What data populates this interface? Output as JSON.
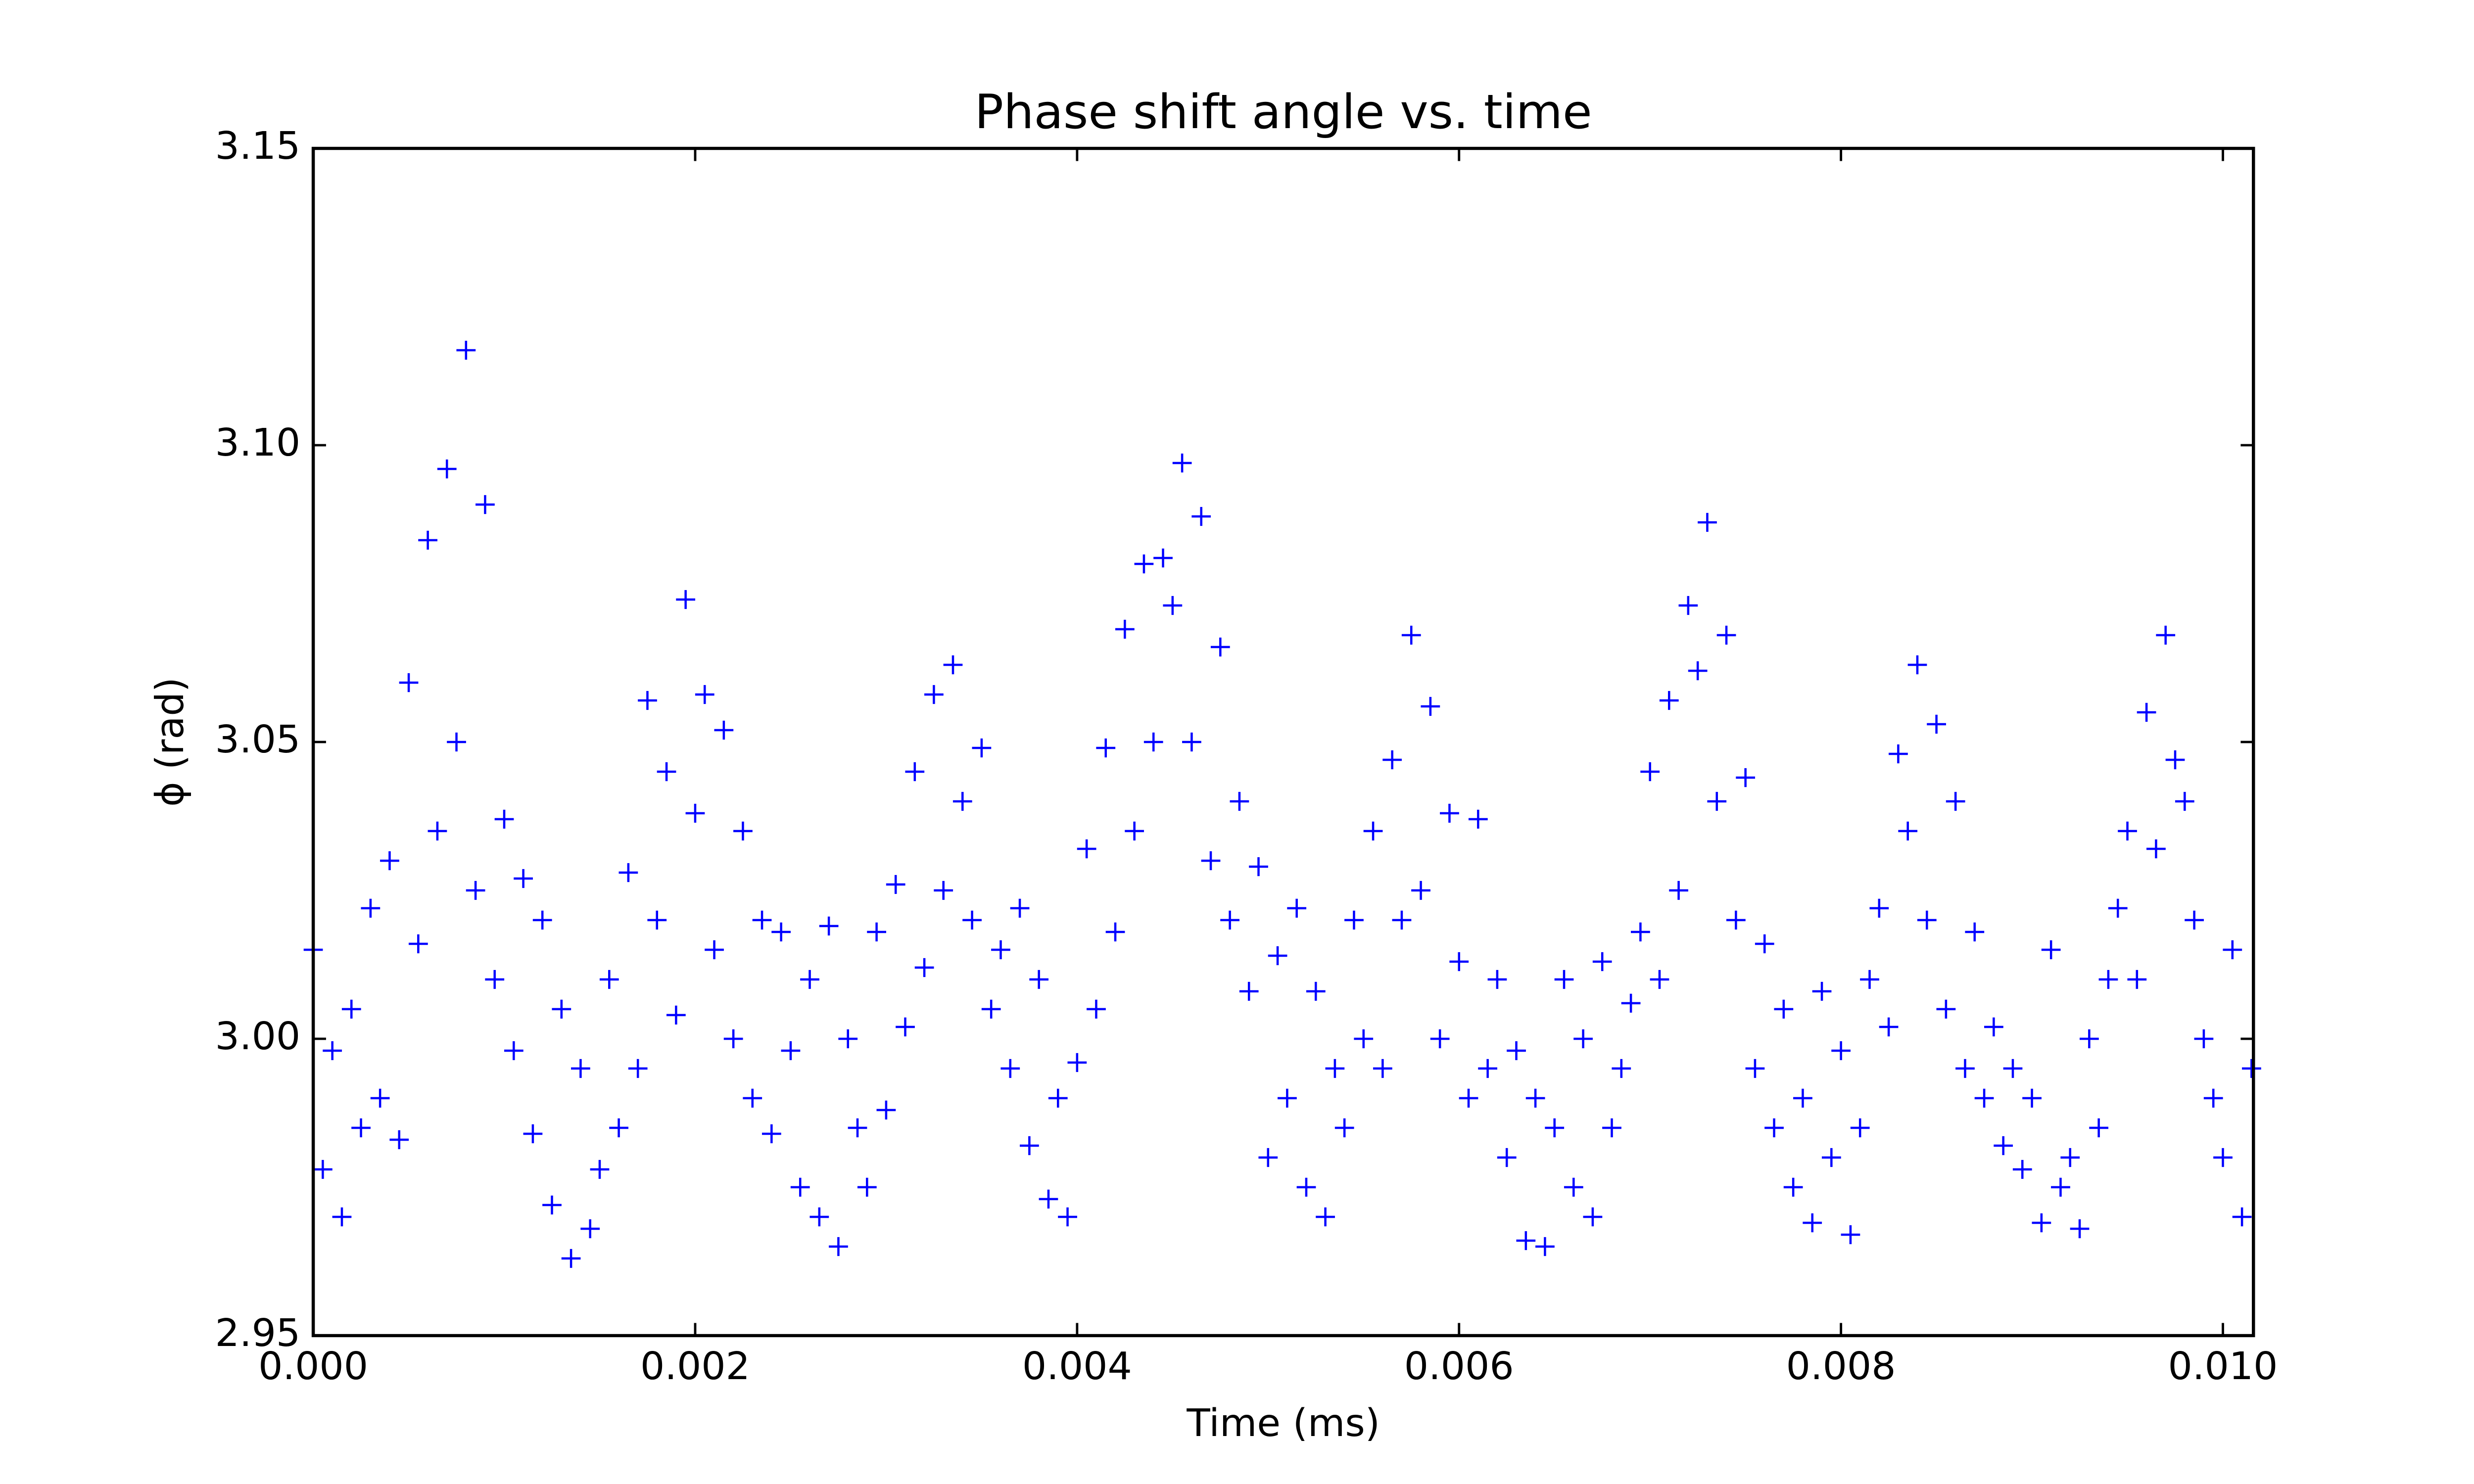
{
  "chart_data": {
    "type": "scatter",
    "title": "Phase shift angle vs. time",
    "x_label": "Time (ms)",
    "y_label": "ϕ (rad)",
    "marker": "+",
    "color": "#0000ff",
    "grid": false,
    "xlim": [
      0,
      0.01016
    ],
    "ylim": [
      2.95,
      3.15
    ],
    "xticks": [
      {
        "value": 0,
        "label": "0.000"
      },
      {
        "value": 0.002,
        "label": "0.002"
      },
      {
        "value": 0.004,
        "label": "0.004"
      },
      {
        "value": 0.006,
        "label": "0.006"
      },
      {
        "value": 0.008,
        "label": "0.008"
      },
      {
        "value": 0.01,
        "label": "0.010"
      }
    ],
    "yticks": [
      2.95,
      {
        "value": 3.0,
        "label": "3.00"
      },
      3.05,
      {
        "value": 3.1,
        "label": "3.10"
      },
      3.15
    ],
    "x": [
      0,
      5e-05,
      0.0001,
      0.00015,
      0.0002,
      0.00025,
      0.0003,
      0.00035,
      0.0004,
      0.00045,
      0.0005,
      0.00055,
      0.0006,
      0.00065,
      0.0007,
      0.00075,
      0.0008,
      0.00085,
      0.0009,
      0.00095,
      0.001,
      0.00105,
      0.0011,
      0.00115,
      0.0012,
      0.00125,
      0.0013,
      0.00135,
      0.0014,
      0.00145,
      0.0015,
      0.00155,
      0.0016,
      0.00165,
      0.0017,
      0.00175,
      0.0018,
      0.00185,
      0.0019,
      0.00195,
      0.002,
      0.00205,
      0.0021,
      0.00215,
      0.0022,
      0.00225,
      0.0023,
      0.00235,
      0.0024,
      0.00245,
      0.0025,
      0.00255,
      0.0026,
      0.00265,
      0.0027,
      0.00275,
      0.0028,
      0.00285,
      0.0029,
      0.00295,
      0.003,
      0.00305,
      0.0031,
      0.00315,
      0.0032,
      0.00325,
      0.0033,
      0.00335,
      0.0034,
      0.00345,
      0.0035,
      0.00355,
      0.0036,
      0.00365,
      0.0037,
      0.00375,
      0.0038,
      0.00385,
      0.0039,
      0.00395,
      0.004,
      0.00405,
      0.0041,
      0.00415,
      0.0042,
      0.00425,
      0.0043,
      0.00435,
      0.0044,
      0.00445,
      0.0045,
      0.00455,
      0.0046,
      0.00465,
      0.0047,
      0.00475,
      0.0048,
      0.00485,
      0.0049,
      0.00495,
      0.005,
      0.00505,
      0.0051,
      0.00515,
      0.0052,
      0.00525,
      0.0053,
      0.00535,
      0.0054,
      0.00545,
      0.0055,
      0.00555,
      0.0056,
      0.00565,
      0.0057,
      0.00575,
      0.0058,
      0.00585,
      0.0059,
      0.00595,
      0.006,
      0.00605,
      0.0061,
      0.00615,
      0.0062,
      0.00625,
      0.0063,
      0.00635,
      0.0064,
      0.00645,
      0.0065,
      0.00655,
      0.0066,
      0.00665,
      0.0067,
      0.00675,
      0.0068,
      0.00685,
      0.0069,
      0.00695,
      0.007,
      0.00705,
      0.0071,
      0.00715,
      0.0072,
      0.00725,
      0.0073,
      0.00735,
      0.0074,
      0.00745,
      0.0075,
      0.00755,
      0.0076,
      0.00765,
      0.0077,
      0.00775,
      0.0078,
      0.00785,
      0.0079,
      0.00795,
      0.008,
      0.00805,
      0.0081,
      0.00815,
      0.0082,
      0.00825,
      0.0083,
      0.00835,
      0.0084,
      0.00845,
      0.0085,
      0.00855,
      0.0086,
      0.00865,
      0.0087,
      0.00875,
      0.0088,
      0.00885,
      0.0089,
      0.00895,
      0.009,
      0.00905,
      0.0091,
      0.00915,
      0.0092,
      0.00925,
      0.0093,
      0.00935,
      0.0094,
      0.00945,
      0.0095,
      0.00955,
      0.0096,
      0.00965,
      0.0097,
      0.00975,
      0.0098,
      0.00985,
      0.0099,
      0.00995,
      0.01,
      0.01005,
      0.0101,
      0.01015
    ],
    "values": [
      3.015,
      2.978,
      2.998,
      2.97,
      3.005,
      2.985,
      3.022,
      2.99,
      3.03,
      2.983,
      3.06,
      3.016,
      3.084,
      3.035,
      3.096,
      3.05,
      3.116,
      3.025,
      3.09,
      3.01,
      3.037,
      2.998,
      3.027,
      2.984,
      3.02,
      2.972,
      3.005,
      2.963,
      2.995,
      2.968,
      2.978,
      3.01,
      2.985,
      3.028,
      2.995,
      3.057,
      3.02,
      3.045,
      3.004,
      3.074,
      3.038,
      3.058,
      3.015,
      3.052,
      3.0,
      3.035,
      2.99,
      3.02,
      2.984,
      3.018,
      2.998,
      2.975,
      3.01,
      2.97,
      3.019,
      2.965,
      3.0,
      2.985,
      2.975,
      3.018,
      2.988,
      3.026,
      3.002,
      3.045,
      3.012,
      3.058,
      3.025,
      3.063,
      3.04,
      3.02,
      3.049,
      3.005,
      3.015,
      2.995,
      3.022,
      2.982,
      3.01,
      2.973,
      2.99,
      2.97,
      2.996,
      3.032,
      3.005,
      3.049,
      3.018,
      3.069,
      3.035,
      3.08,
      3.05,
      3.081,
      3.073,
      3.097,
      3.05,
      3.088,
      3.03,
      3.066,
      3.02,
      3.04,
      3.008,
      3.029,
      2.98,
      3.014,
      2.99,
      3.022,
      2.975,
      3.008,
      2.97,
      2.995,
      2.985,
      3.02,
      3.0,
      3.035,
      2.995,
      3.047,
      3.02,
      3.068,
      3.025,
      3.056,
      3.0,
      3.038,
      3.013,
      2.99,
      3.037,
      2.995,
      3.01,
      2.98,
      2.998,
      2.966,
      2.99,
      2.965,
      2.985,
      3.01,
      2.975,
      3.0,
      2.97,
      3.013,
      2.985,
      2.995,
      3.006,
      3.018,
      3.045,
      3.01,
      3.057,
      3.025,
      3.073,
      3.062,
      3.087,
      3.04,
      3.068,
      3.02,
      3.044,
      2.995,
      3.016,
      2.985,
      3.005,
      2.975,
      2.99,
      2.969,
      3.008,
      2.98,
      2.998,
      2.967,
      2.985,
      3.01,
      3.022,
      3.002,
      3.048,
      3.035,
      3.063,
      3.02,
      3.053,
      3.005,
      3.04,
      2.995,
      3.018,
      2.99,
      3.002,
      2.982,
      2.995,
      2.978,
      2.99,
      2.969,
      3.015,
      2.975,
      2.98,
      2.968,
      3.0,
      2.985,
      3.01,
      3.022,
      3.035,
      3.01,
      3.055,
      3.032,
      3.068,
      3.047,
      3.04,
      3.02,
      3.0,
      2.99,
      2.98,
      3.015,
      2.97,
      2.995
    ]
  }
}
